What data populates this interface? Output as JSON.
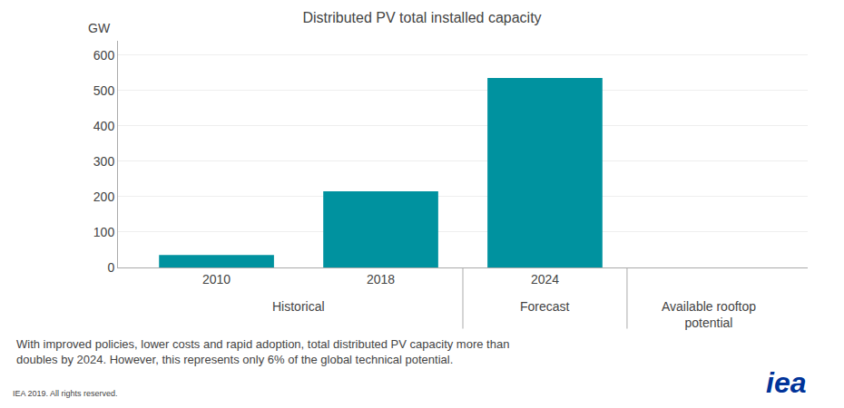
{
  "chart_data": {
    "type": "bar",
    "title": "Distributed PV total installed capacity",
    "ylabel": "GW",
    "categories": [
      "2010",
      "2018",
      "2024",
      null
    ],
    "values": [
      35,
      215,
      535,
      0
    ],
    "color": "#00929F",
    "ylim": [
      0,
      640
    ],
    "yticks": [
      0,
      100,
      200,
      300,
      400,
      500,
      600
    ],
    "grid": true,
    "annotations": [
      {
        "text": "Historical"
      },
      {
        "text": "Forecast"
      },
      {
        "text": "Available rooftop\npotential"
      },
      {
        "text": "With improved policies, lower costs and rapid adoption, total distributed PV capacity more than\ndoubles by 2024. However, this represents only 6% of the global technical potential."
      },
      {
        "text": "IEA 2019. All rights reserved."
      },
      {
        "text": "iea",
        "color": "#003399"
      }
    ]
  }
}
